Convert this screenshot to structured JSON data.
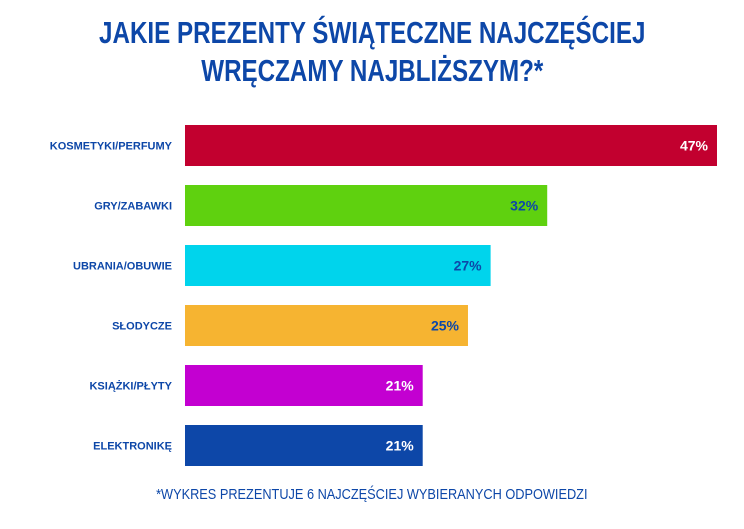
{
  "chart_data": {
    "type": "bar",
    "orientation": "horizontal",
    "title_line1": "JAKIE PREZENTY ŚWIĄTECZNE NAJCZĘŚCIEJ",
    "title_line2": "WRĘCZAMY NAJBLIŻSZYM?*",
    "categories": [
      "KOSMETYKI/PERFUMY",
      "GRY/ZABAWKI",
      "UBRANIA/OBUWIE",
      "SŁODYCZE",
      "KSIĄŻKI/PŁYTY",
      "ELEKTRONIKĘ"
    ],
    "values": [
      47,
      32,
      27,
      25,
      21,
      21
    ],
    "data_labels": [
      "47%",
      "32%",
      "27%",
      "25%",
      "21%",
      "21%"
    ],
    "colors": [
      "#c2002f",
      "#5fd10f",
      "#00d4ec",
      "#f6b431",
      "#c300d1",
      "#0d47a8"
    ],
    "label_colors": [
      "#ffffff",
      "#0d47a8",
      "#0d47a8",
      "#0d47a8",
      "#ffffff",
      "#ffffff"
    ],
    "xlim": [
      0,
      47
    ],
    "grid": false,
    "footnote": "*WYKRES PREZENTUJE 6 NAJCZĘŚCIEJ WYBIERANYCH ODPOWIEDZI"
  }
}
